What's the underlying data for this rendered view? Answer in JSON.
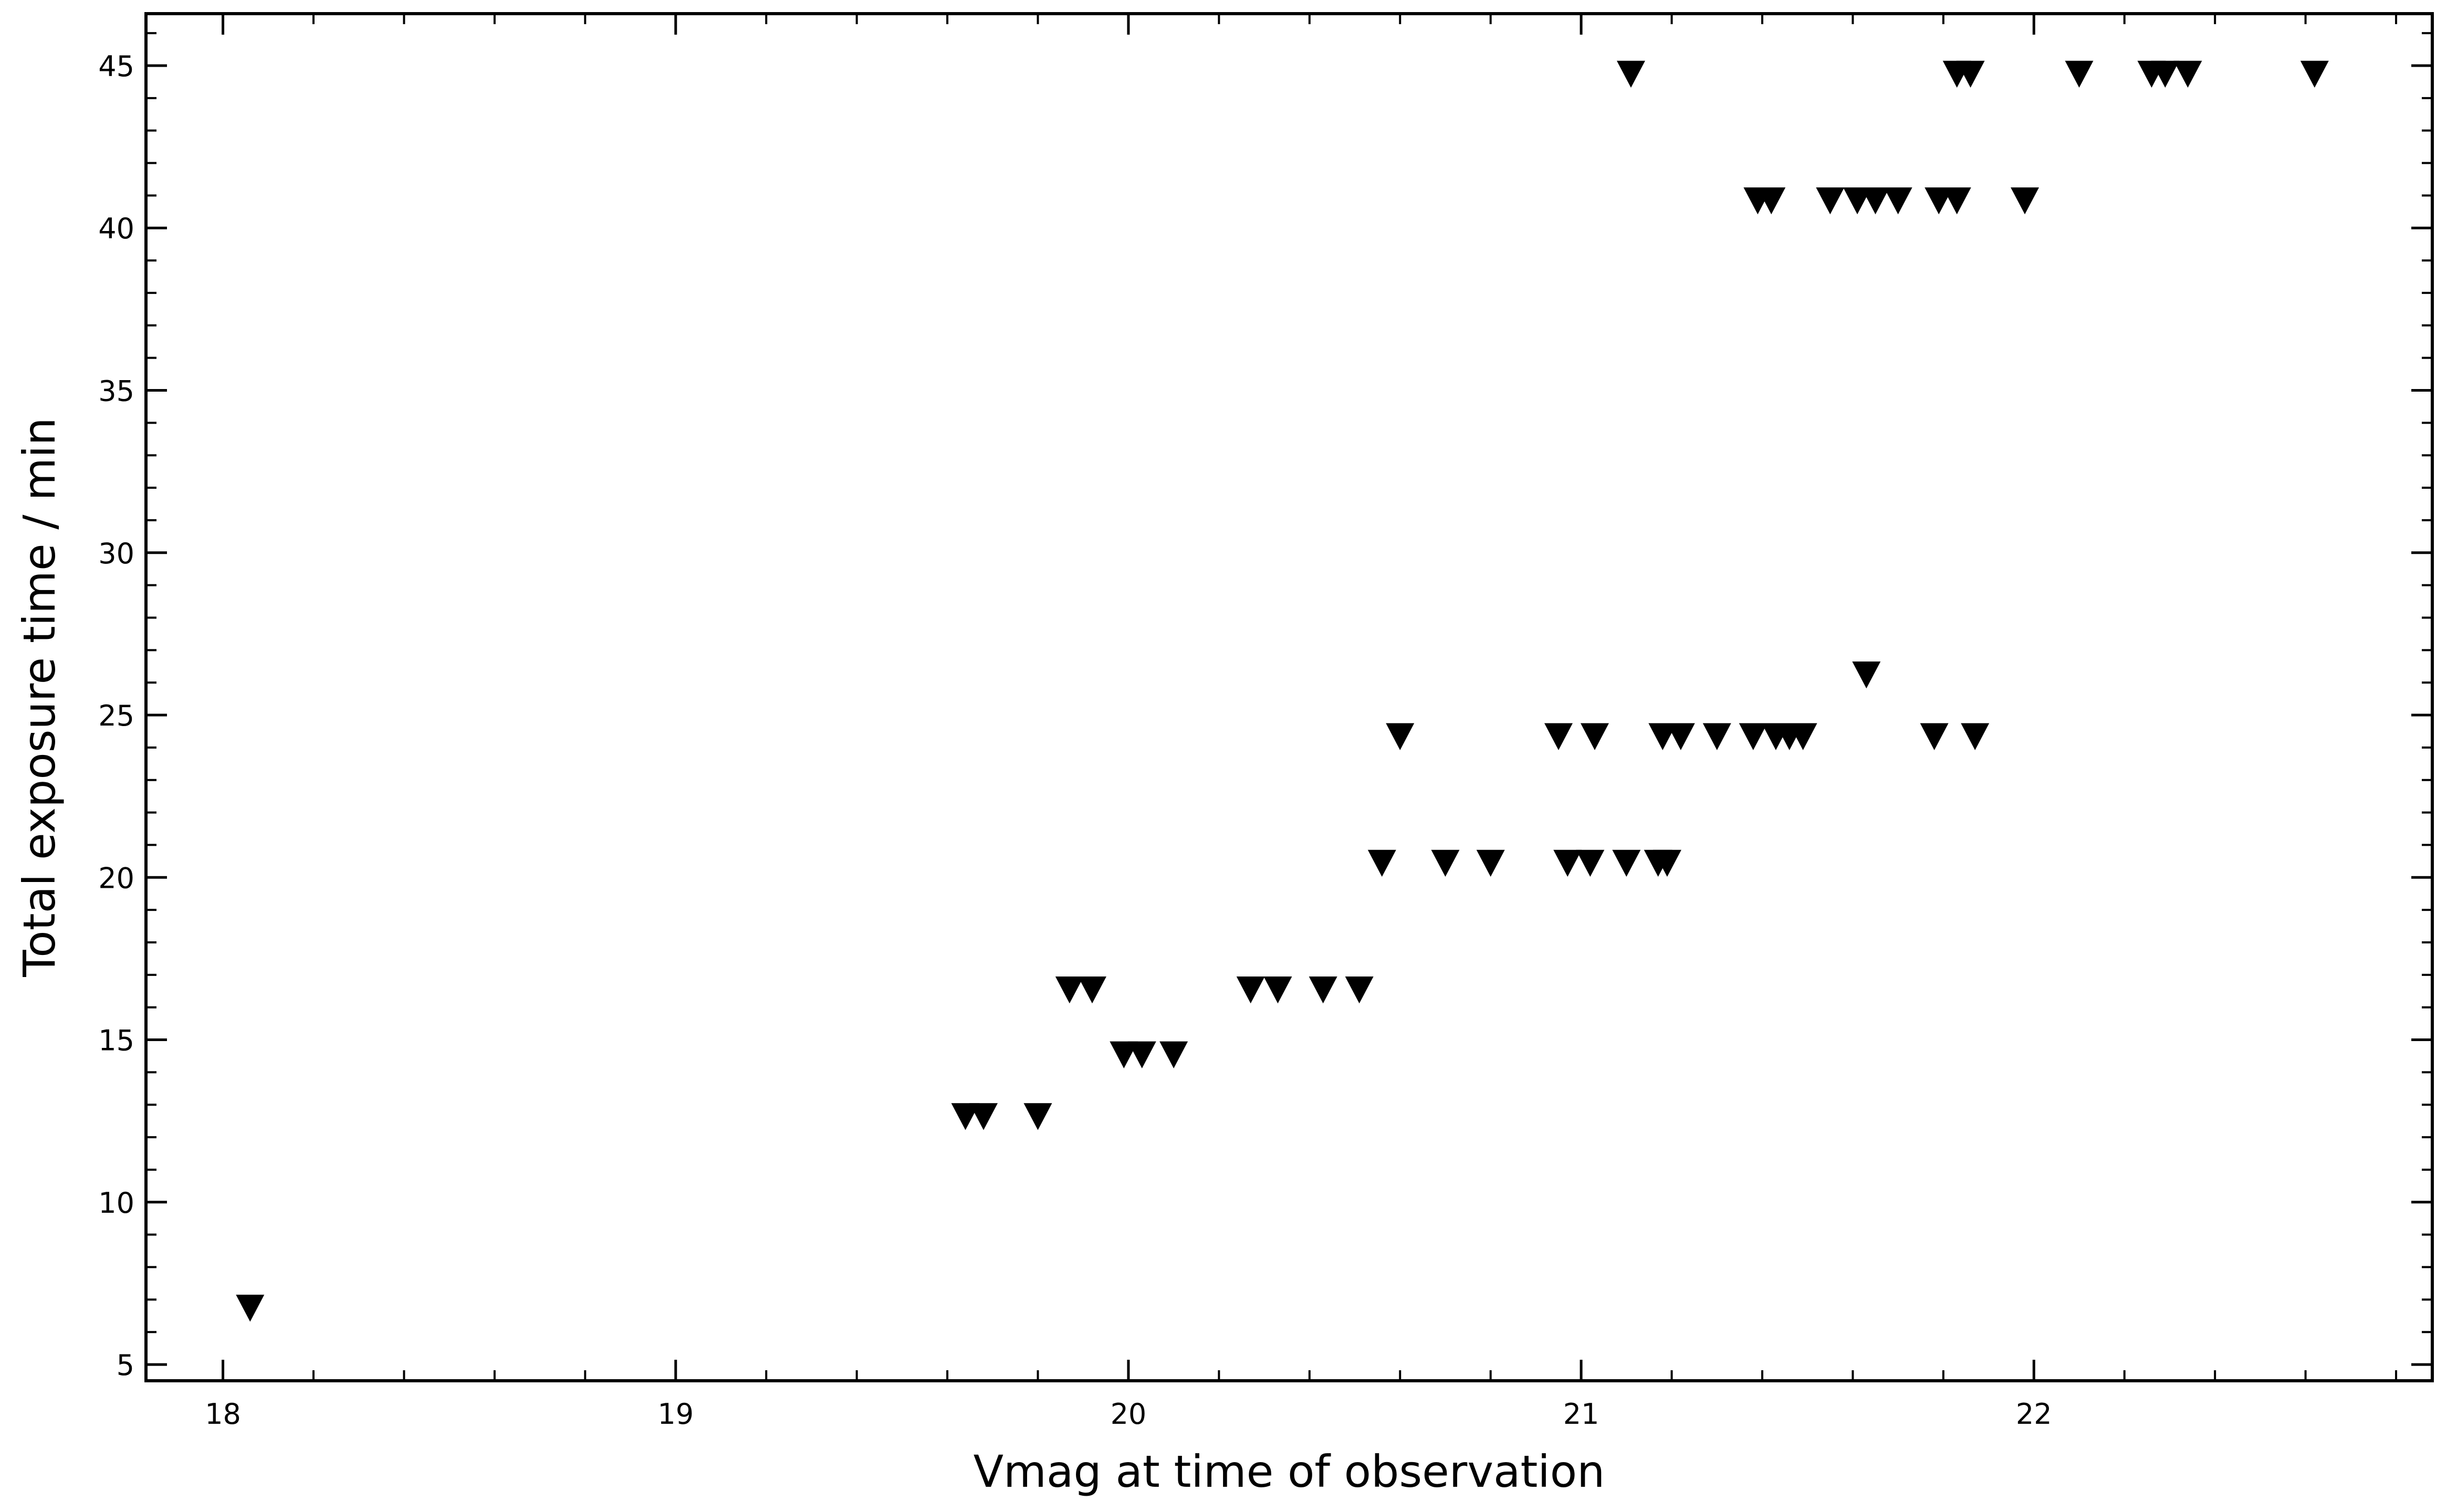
{
  "chart_data": {
    "type": "scatter",
    "title": "",
    "xlabel": "Vmag at time of observation",
    "ylabel": "Total exposure time / min",
    "xlim": [
      17.83,
      22.88
    ],
    "ylim": [
      4.5,
      46.6
    ],
    "xticks": [
      18,
      19,
      20,
      21,
      22
    ],
    "yticks": [
      5,
      10,
      15,
      20,
      25,
      30,
      35,
      40,
      45
    ],
    "marker": "triangle-down",
    "marker_color": "#000000",
    "grid": false,
    "legend": "none",
    "series": [
      {
        "points": [
          {
            "x": 18.06,
            "y": 6.8
          },
          {
            "x": 19.64,
            "y": 12.7
          },
          {
            "x": 19.68,
            "y": 12.7
          },
          {
            "x": 19.8,
            "y": 12.7
          },
          {
            "x": 19.99,
            "y": 14.6
          },
          {
            "x": 20.03,
            "y": 14.6
          },
          {
            "x": 20.1,
            "y": 14.6
          },
          {
            "x": 19.87,
            "y": 16.6
          },
          {
            "x": 19.92,
            "y": 16.6
          },
          {
            "x": 20.27,
            "y": 16.6
          },
          {
            "x": 20.33,
            "y": 16.6
          },
          {
            "x": 20.43,
            "y": 16.6
          },
          {
            "x": 20.51,
            "y": 16.6
          },
          {
            "x": 20.56,
            "y": 20.5
          },
          {
            "x": 20.7,
            "y": 20.5
          },
          {
            "x": 20.8,
            "y": 20.5
          },
          {
            "x": 20.97,
            "y": 20.5
          },
          {
            "x": 21.02,
            "y": 20.5
          },
          {
            "x": 21.1,
            "y": 20.5
          },
          {
            "x": 21.17,
            "y": 20.5
          },
          {
            "x": 21.19,
            "y": 20.5
          },
          {
            "x": 20.6,
            "y": 24.4
          },
          {
            "x": 20.95,
            "y": 24.4
          },
          {
            "x": 21.03,
            "y": 24.4
          },
          {
            "x": 21.18,
            "y": 24.4
          },
          {
            "x": 21.22,
            "y": 24.4
          },
          {
            "x": 21.3,
            "y": 24.4
          },
          {
            "x": 21.38,
            "y": 24.4
          },
          {
            "x": 21.43,
            "y": 24.4
          },
          {
            "x": 21.46,
            "y": 24.4
          },
          {
            "x": 21.49,
            "y": 24.4
          },
          {
            "x": 21.78,
            "y": 24.4
          },
          {
            "x": 21.87,
            "y": 24.4
          },
          {
            "x": 21.63,
            "y": 26.3
          },
          {
            "x": 21.39,
            "y": 40.9
          },
          {
            "x": 21.42,
            "y": 40.9
          },
          {
            "x": 21.55,
            "y": 40.9
          },
          {
            "x": 21.61,
            "y": 40.9
          },
          {
            "x": 21.65,
            "y": 40.9
          },
          {
            "x": 21.7,
            "y": 40.9
          },
          {
            "x": 21.79,
            "y": 40.9
          },
          {
            "x": 21.83,
            "y": 40.9
          },
          {
            "x": 21.98,
            "y": 40.9
          },
          {
            "x": 21.11,
            "y": 44.8
          },
          {
            "x": 21.83,
            "y": 44.8
          },
          {
            "x": 21.86,
            "y": 44.8
          },
          {
            "x": 22.1,
            "y": 44.8
          },
          {
            "x": 22.26,
            "y": 44.8
          },
          {
            "x": 22.29,
            "y": 44.8
          },
          {
            "x": 22.34,
            "y": 44.8
          },
          {
            "x": 22.62,
            "y": 44.8
          }
        ]
      }
    ]
  }
}
